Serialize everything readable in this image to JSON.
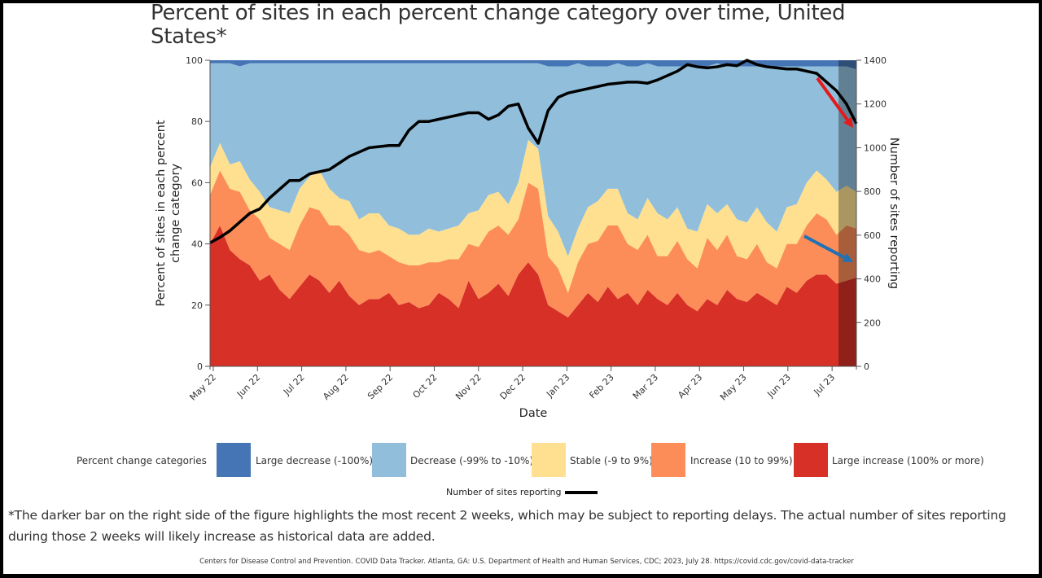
{
  "chart_data": {
    "type": "area",
    "stacked": true,
    "title": "Percent of sites in each percent change category over time, United States*",
    "xlabel": "Date",
    "ylabel": "Percent of sites in each percent change category",
    "ylabel_right": "Number of sites reporting",
    "ylim": [
      0,
      100
    ],
    "ylim_right": [
      0,
      1400
    ],
    "yticks": [
      "0",
      "20",
      "40",
      "60",
      "80",
      "100"
    ],
    "yticks_right": [
      "0",
      "200",
      "400",
      "600",
      "800",
      "1000",
      "1200",
      "1400"
    ],
    "xticks": [
      "May 22",
      "Jun 22",
      "Jul 22",
      "Aug 22",
      "Sep 22",
      "Oct 22",
      "Nov 22",
      "Dec 22",
      "Jan 23",
      "Feb 23",
      "Mar 23",
      "Apr 23",
      "May 23",
      "Jun 23",
      "Jul 23"
    ],
    "x_index_note": "weeks since first tick (May 22)",
    "x": [
      0,
      1,
      2,
      3,
      4,
      5,
      6,
      7,
      8,
      9,
      10,
      11,
      12,
      13,
      14,
      15,
      16,
      17,
      18,
      19,
      20,
      21,
      22,
      23,
      24,
      25,
      26,
      27,
      28,
      29,
      30,
      31,
      32,
      33,
      34,
      35,
      36,
      37,
      38,
      39,
      40,
      41,
      42,
      43,
      44,
      45,
      46,
      47,
      48,
      49,
      50,
      51,
      52,
      53,
      54,
      55,
      56,
      57,
      58,
      59,
      60,
      61,
      62,
      63,
      64,
      65
    ],
    "series": [
      {
        "name": "Large increase (100% or more)",
        "color": "#d73027",
        "values": [
          40,
          46,
          38,
          35,
          33,
          28,
          30,
          25,
          22,
          26,
          30,
          28,
          24,
          28,
          23,
          20,
          22,
          22,
          24,
          20,
          21,
          19,
          20,
          24,
          22,
          19,
          28,
          22,
          24,
          27,
          23,
          30,
          34,
          30,
          20,
          18,
          16,
          20,
          24,
          21,
          26,
          22,
          24,
          20,
          25,
          22,
          20,
          24,
          20,
          18,
          22,
          20,
          25,
          22,
          21,
          24,
          22,
          20,
          26,
          24,
          28,
          30,
          30,
          27,
          28,
          29
        ]
      },
      {
        "name": "Increase (10 to 99%)",
        "color": "#fc8d59",
        "values": [
          16,
          18,
          20,
          22,
          18,
          20,
          12,
          15,
          16,
          20,
          22,
          23,
          22,
          18,
          20,
          18,
          15,
          16,
          12,
          14,
          12,
          14,
          14,
          10,
          13,
          16,
          12,
          17,
          20,
          19,
          20,
          18,
          26,
          28,
          16,
          14,
          8,
          14,
          16,
          20,
          20,
          24,
          16,
          18,
          18,
          14,
          16,
          17,
          15,
          14,
          20,
          18,
          18,
          14,
          14,
          16,
          12,
          12,
          14,
          16,
          18,
          20,
          18,
          16,
          18,
          16
        ]
      },
      {
        "name": "Stable (-9 to 9%)",
        "color": "#fee090",
        "values": [
          9,
          9,
          8,
          10,
          10,
          9,
          10,
          11,
          12,
          12,
          10,
          13,
          12,
          9,
          11,
          10,
          13,
          12,
          10,
          11,
          10,
          10,
          11,
          10,
          10,
          11,
          10,
          12,
          12,
          11,
          10,
          12,
          14,
          13,
          13,
          12,
          12,
          11,
          12,
          13,
          12,
          12,
          10,
          10,
          12,
          14,
          12,
          11,
          10,
          12,
          11,
          12,
          10,
          12,
          12,
          12,
          13,
          12,
          12,
          13,
          14,
          14,
          13,
          14,
          13,
          12
        ]
      },
      {
        "name": "Decrease (-99% to -10%)",
        "color": "#91bfdb",
        "values": [
          34,
          26,
          33,
          31,
          38,
          42,
          47,
          48,
          49,
          41,
          37,
          35,
          41,
          44,
          45,
          51,
          49,
          49,
          53,
          54,
          56,
          56,
          54,
          55,
          54,
          53,
          49,
          48,
          43,
          42,
          46,
          39,
          25,
          28,
          49,
          54,
          62,
          54,
          46,
          44,
          40,
          41,
          48,
          50,
          44,
          48,
          50,
          46,
          53,
          54,
          45,
          49,
          45,
          50,
          51,
          46,
          51,
          54,
          46,
          45,
          38,
          34,
          37,
          41,
          39,
          40
        ]
      },
      {
        "name": "Large decrease (-100%)",
        "color": "#4575b4",
        "values": [
          1,
          1,
          1,
          2,
          1,
          1,
          1,
          1,
          1,
          1,
          1,
          1,
          1,
          1,
          1,
          1,
          1,
          1,
          1,
          1,
          1,
          1,
          1,
          1,
          1,
          1,
          1,
          1,
          1,
          1,
          1,
          1,
          1,
          1,
          2,
          2,
          2,
          1,
          2,
          2,
          2,
          1,
          2,
          2,
          1,
          2,
          2,
          2,
          2,
          2,
          2,
          1,
          2,
          2,
          2,
          2,
          2,
          2,
          2,
          2,
          2,
          2,
          2,
          2,
          2,
          3
        ]
      }
    ],
    "line_series": {
      "name": "Number of sites reporting",
      "color": "#000000",
      "axis": "right",
      "values": [
        565,
        590,
        620,
        660,
        700,
        720,
        770,
        810,
        850,
        850,
        880,
        890,
        900,
        930,
        960,
        980,
        1000,
        1005,
        1010,
        1010,
        1080,
        1120,
        1120,
        1130,
        1140,
        1150,
        1160,
        1160,
        1130,
        1150,
        1190,
        1200,
        1090,
        1020,
        1170,
        1230,
        1250,
        1260,
        1270,
        1280,
        1290,
        1295,
        1300,
        1300,
        1295,
        1310,
        1330,
        1350,
        1380,
        1370,
        1365,
        1370,
        1380,
        1375,
        1400,
        1380,
        1370,
        1365,
        1360,
        1360,
        1350,
        1340,
        1300,
        1260,
        1200,
        1110
      ]
    },
    "highlight_region": {
      "label": "most recent 2 weeks",
      "from_index": 63,
      "to_index": 65
    },
    "annotations": [
      {
        "type": "arrow",
        "color": "#e41a1c",
        "meaning": "decline in number of sites reporting"
      },
      {
        "type": "arrow",
        "color": "#2171b5",
        "meaning": "decline in percent of sites with increases"
      }
    ],
    "legend_position": "bottom"
  },
  "legend": {
    "title": "Percent change categories",
    "items": [
      {
        "label": "Large decrease (-100%)",
        "color": "#4575b4"
      },
      {
        "label": "Decrease (-99% to -10%)",
        "color": "#91bfdb"
      },
      {
        "label": "Stable (-9 to 9%)",
        "color": "#fee090"
      },
      {
        "label": "Increase (10 to 99%)",
        "color": "#fc8d59"
      },
      {
        "label": "Large increase (100% or more)",
        "color": "#d73027"
      }
    ],
    "line_label": "Number of sites reporting"
  },
  "footnote": "*The darker bar on the right side of the figure highlights the most recent 2 weeks, which may be subject to reporting delays. The actual number of sites reporting during those 2 weeks will likely increase as historical data are added.",
  "citation": "Centers for Disease Control and Prevention. COVID Data Tracker. Atlanta, GA: U.S. Department of Health and Human Services, CDC; 2023, July 28. https://covid.cdc.gov/covid-data-tracker"
}
